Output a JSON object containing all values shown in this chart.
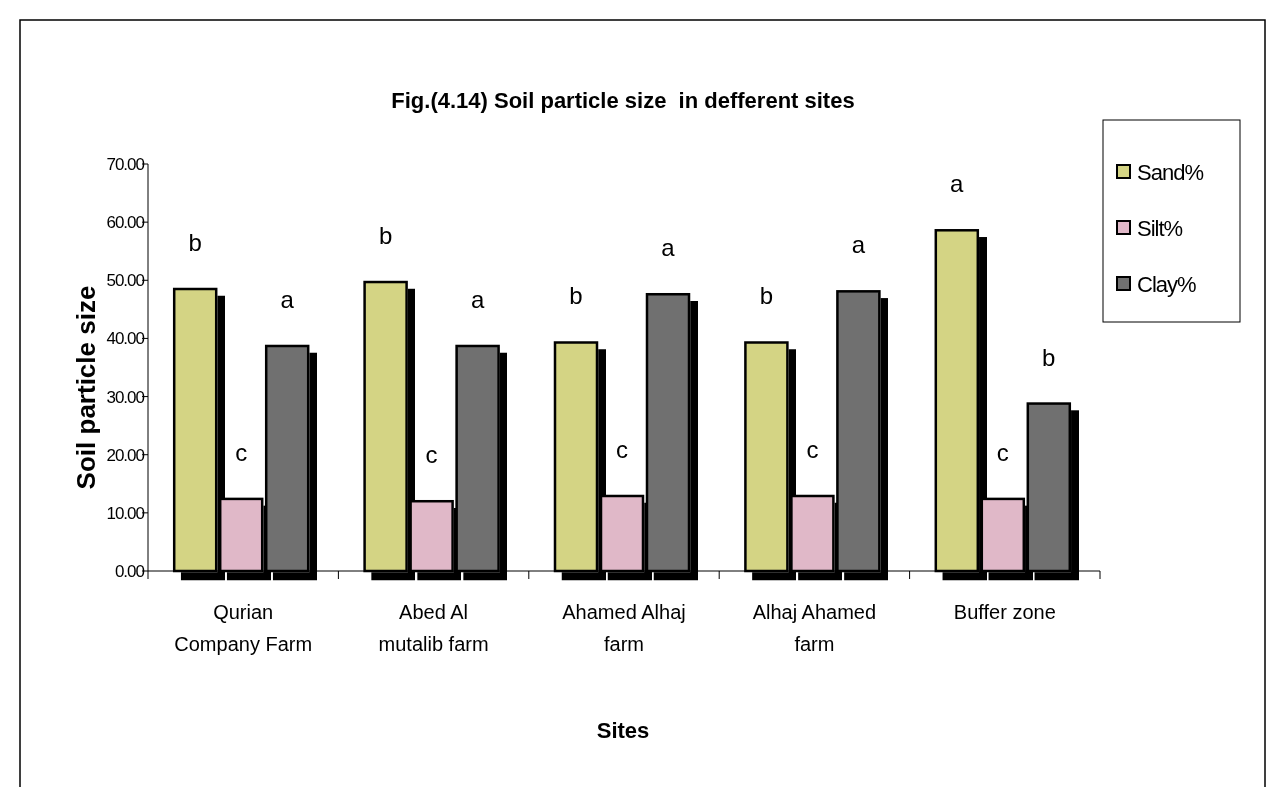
{
  "chart_data": {
    "type": "bar",
    "title": "Fig.(4.14) Soil particle size  in defferent sites",
    "xlabel": "Sites",
    "ylabel": "Soil particle size",
    "categories": [
      "Qurian Company Farm",
      "Abed Al mutalib farm",
      "Ahamed Alhaj farm",
      "Alhaj Ahamed farm",
      "Buffer zone"
    ],
    "series": [
      {
        "name": "Sand%",
        "color": "#d4d484",
        "values": [
          48.5,
          49.7,
          39.3,
          39.3,
          58.6
        ],
        "value_labels": [
          "b",
          "b",
          "b",
          "b",
          "a"
        ]
      },
      {
        "name": "Silt%",
        "color": "#e0b8c8",
        "values": [
          12.4,
          12.0,
          12.9,
          12.9,
          12.4
        ],
        "value_labels": [
          "c",
          "c",
          "c",
          "c",
          "c"
        ]
      },
      {
        "name": "Clay%",
        "color": "#707070",
        "values": [
          38.7,
          38.7,
          47.6,
          48.1,
          28.8
        ],
        "value_labels": [
          "a",
          "a",
          "a",
          "a",
          "b"
        ]
      }
    ],
    "ylim": [
      0,
      70
    ],
    "yticks": [
      {
        "value": 0,
        "label": "0.00"
      },
      {
        "value": 10,
        "label": "10.00"
      },
      {
        "value": 20,
        "label": "20.00"
      },
      {
        "value": 30,
        "label": "30.00"
      },
      {
        "value": 40,
        "label": "40.00"
      },
      {
        "value": 50,
        "label": "50.00"
      },
      {
        "value": 60,
        "label": "60.00"
      },
      {
        "value": 70,
        "label": "70.00"
      }
    ],
    "legend": "right"
  }
}
